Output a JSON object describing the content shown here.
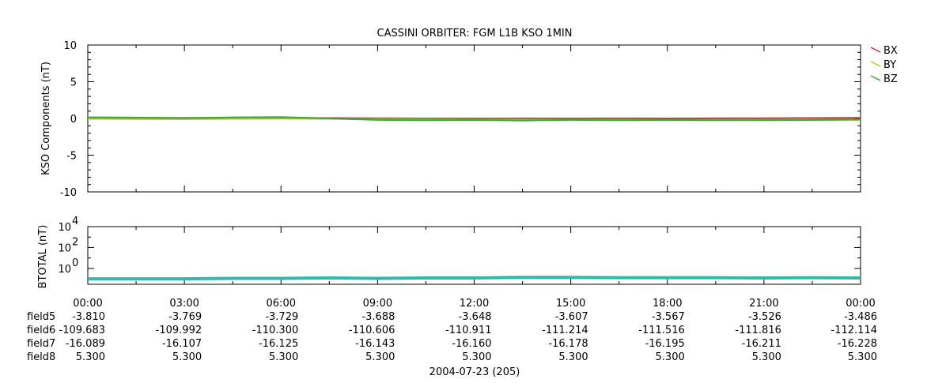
{
  "chart_data": [
    {
      "type": "line",
      "title": "CASSINI ORBITER: FGM L1B KSO 1MIN",
      "ylabel": "KSO Components (nT)",
      "ylim": [
        -10,
        10
      ],
      "yticks": [
        "10",
        "5",
        "0",
        "-5",
        "-10"
      ],
      "ytick_values": [
        10,
        5,
        0,
        -5,
        -10
      ],
      "legend": "right",
      "x": [
        "00:00",
        "01:30",
        "03:00",
        "04:30",
        "06:00",
        "07:30",
        "09:00",
        "10:30",
        "12:00",
        "13:30",
        "15:00",
        "16:30",
        "18:00",
        "19:30",
        "21:00",
        "22:30",
        "24:00"
      ],
      "series": [
        {
          "name": "BX",
          "color": "#c03030",
          "values": [
            0.1,
            0.08,
            0.07,
            0.09,
            0.08,
            0.05,
            0.02,
            0.0,
            0.0,
            0.01,
            0.0,
            0.01,
            0.0,
            0.02,
            0.02,
            0.05,
            0.08
          ]
        },
        {
          "name": "BY",
          "color": "#a8c830",
          "values": [
            -0.05,
            -0.08,
            -0.1,
            -0.05,
            -0.02,
            -0.05,
            -0.1,
            -0.12,
            -0.15,
            -0.15,
            -0.16,
            -0.16,
            -0.18,
            -0.2,
            -0.22,
            -0.2,
            -0.18
          ]
        },
        {
          "name": "BZ",
          "color": "#3aa83a",
          "values": [
            0.15,
            0.12,
            0.05,
            0.15,
            0.18,
            0.0,
            -0.2,
            -0.25,
            -0.22,
            -0.28,
            -0.2,
            -0.25,
            -0.22,
            -0.25,
            -0.25,
            -0.2,
            -0.15
          ]
        }
      ]
    },
    {
      "type": "line",
      "ylabel": "BTOTAL (nT)",
      "yscale": "log",
      "ylim": [
        0.03,
        10000
      ],
      "yticks": [
        {
          "base": "10",
          "exp": "4",
          "value": 10000
        },
        {
          "base": "10",
          "exp": "2",
          "value": 100
        },
        {
          "base": "10",
          "exp": "0",
          "value": 1
        }
      ],
      "x": [
        "00:00",
        "01:30",
        "03:00",
        "04:30",
        "06:00",
        "07:30",
        "09:00",
        "10:30",
        "12:00",
        "13:30",
        "15:00",
        "16:30",
        "18:00",
        "19:30",
        "21:00",
        "22:30",
        "24:00"
      ],
      "series": [
        {
          "color": "#30b8b0",
          "values": [
            0.1,
            0.1,
            0.1,
            0.11,
            0.11,
            0.12,
            0.11,
            0.12,
            0.12,
            0.14,
            0.14,
            0.13,
            0.13,
            0.13,
            0.12,
            0.13,
            0.12
          ]
        }
      ],
      "xticks": [
        "00:00",
        "03:00",
        "06:00",
        "09:00",
        "12:00",
        "15:00",
        "18:00",
        "21:00",
        "00:00"
      ],
      "xlabel": "2004-07-23 (205)",
      "table": [
        {
          "label": "field5",
          "values": [
            "-3.810",
            "-3.769",
            "-3.729",
            "-3.688",
            "-3.648",
            "-3.607",
            "-3.567",
            "-3.526",
            "-3.486"
          ]
        },
        {
          "label": "field6",
          "values": [
            "-109.683",
            "-109.992",
            "-110.300",
            "-110.606",
            "-110.911",
            "-111.214",
            "-111.516",
            "-111.816",
            "-112.114"
          ]
        },
        {
          "label": "field7",
          "values": [
            "-16.089",
            "-16.107",
            "-16.125",
            "-16.143",
            "-16.160",
            "-16.178",
            "-16.195",
            "-16.211",
            "-16.228"
          ]
        },
        {
          "label": "field8",
          "values": [
            "5.300",
            "5.300",
            "5.300",
            "5.300",
            "5.300",
            "5.300",
            "5.300",
            "5.300",
            "5.300"
          ]
        }
      ]
    }
  ]
}
